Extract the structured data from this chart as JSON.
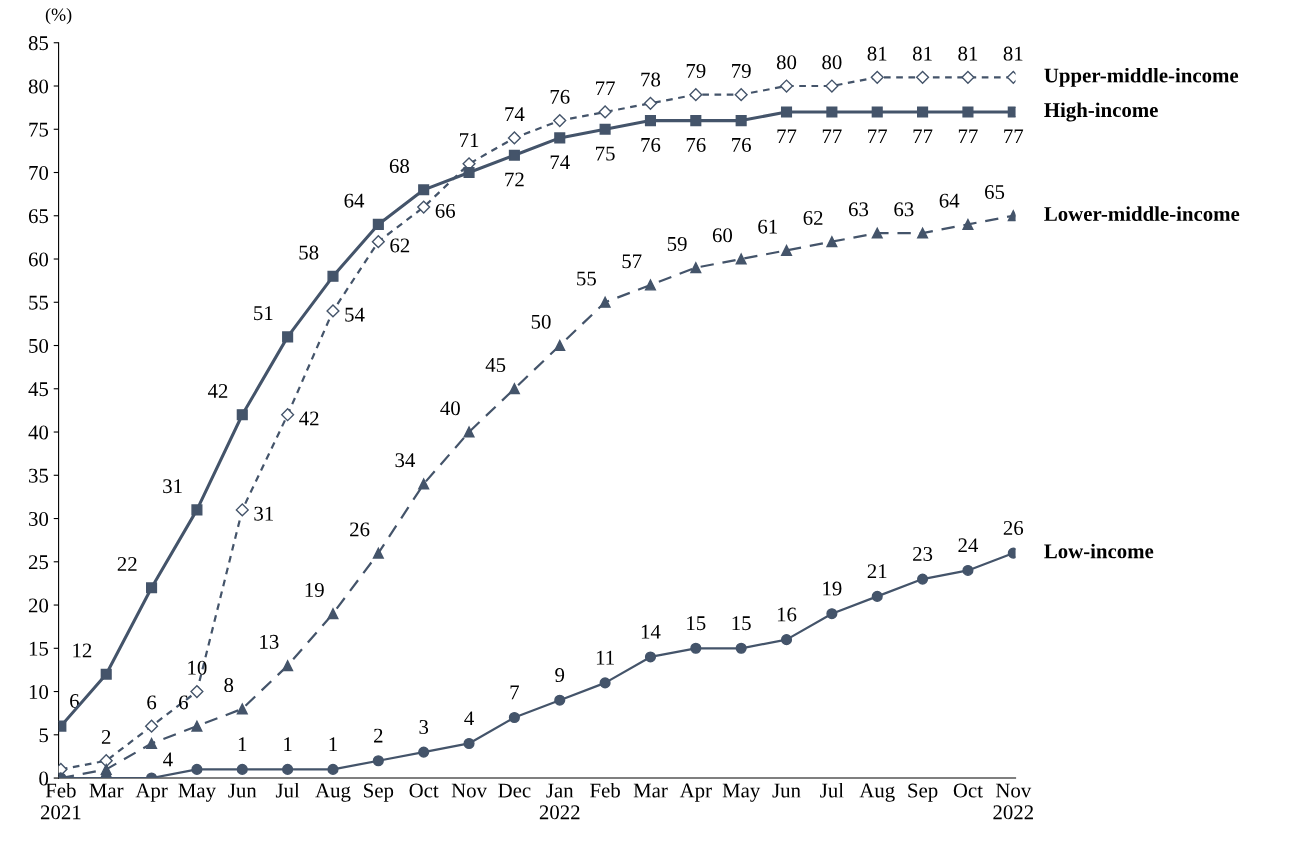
{
  "chart_data": {
    "type": "line",
    "ylabel": "(%)",
    "categories": [
      "Feb\n2021",
      "Mar",
      "Apr",
      "May",
      "Jun",
      "Jul",
      "Aug",
      "Sep",
      "Oct",
      "Nov",
      "Dec",
      "Jan\n2022",
      "Feb",
      "Mar",
      "Apr",
      "May",
      "Jun",
      "Jul",
      "Aug",
      "Sep",
      "Oct",
      "Nov\n2022"
    ],
    "series": [
      {
        "name": "Upper-middle-income",
        "color": "#44546a",
        "marker": "diamond",
        "line_style": "dotted",
        "values": [
          1,
          2,
          6,
          10,
          31,
          42,
          54,
          62,
          66,
          71,
          74,
          76,
          77,
          78,
          79,
          79,
          80,
          80,
          81,
          81,
          81,
          81
        ],
        "value_labels": [
          null,
          "2",
          "6",
          "10",
          "31",
          "42",
          "54",
          "62",
          "66",
          "71",
          "74",
          "76",
          "77",
          "78",
          "79",
          "79",
          "80",
          "80",
          "81",
          "81",
          "81",
          "81"
        ]
      },
      {
        "name": "High-income",
        "color": "#44546a",
        "marker": "square",
        "line_style": "solid",
        "values": [
          6,
          12,
          22,
          31,
          42,
          51,
          58,
          64,
          68,
          70,
          72,
          74,
          75,
          76,
          76,
          76,
          77,
          77,
          77,
          77,
          77,
          77
        ],
        "value_labels": [
          "6",
          "12",
          "22",
          "31",
          "42",
          "51",
          "58",
          "64",
          "68",
          null,
          "72",
          "74",
          "75",
          "76",
          "76",
          "76",
          "77",
          "77",
          "77",
          "77",
          "77",
          "77"
        ]
      },
      {
        "name": "Lower-middle-income",
        "color": "#44546a",
        "marker": "triangle",
        "line_style": "dashed",
        "values": [
          0,
          1,
          4,
          6,
          8,
          13,
          19,
          26,
          34,
          40,
          45,
          50,
          55,
          57,
          59,
          60,
          61,
          62,
          63,
          63,
          64,
          65
        ],
        "value_labels": [
          null,
          null,
          "4",
          "6",
          "8",
          "13",
          "19",
          "26",
          "34",
          "40",
          "45",
          "50",
          "55",
          "57",
          "59",
          "60",
          "61",
          "62",
          "63",
          "63",
          "64",
          "65"
        ]
      },
      {
        "name": "Low-income",
        "color": "#44546a",
        "marker": "circle",
        "line_style": "solid",
        "values": [
          0,
          0,
          0,
          1,
          1,
          1,
          1,
          2,
          3,
          4,
          7,
          9,
          11,
          14,
          15,
          15,
          16,
          19,
          21,
          23,
          24,
          26
        ],
        "value_labels": [
          null,
          null,
          null,
          null,
          "1",
          "1",
          "1",
          "2",
          "3",
          "4",
          "7",
          "9",
          "11",
          "14",
          "15",
          "15",
          "16",
          "19",
          "21",
          "23",
          "24",
          "26"
        ]
      }
    ],
    "ylim": [
      0,
      85
    ],
    "yticks": [
      0,
      5,
      10,
      15,
      20,
      25,
      30,
      35,
      40,
      45,
      50,
      55,
      60,
      65,
      70,
      75,
      80,
      85
    ],
    "grid": false,
    "legend": false
  }
}
